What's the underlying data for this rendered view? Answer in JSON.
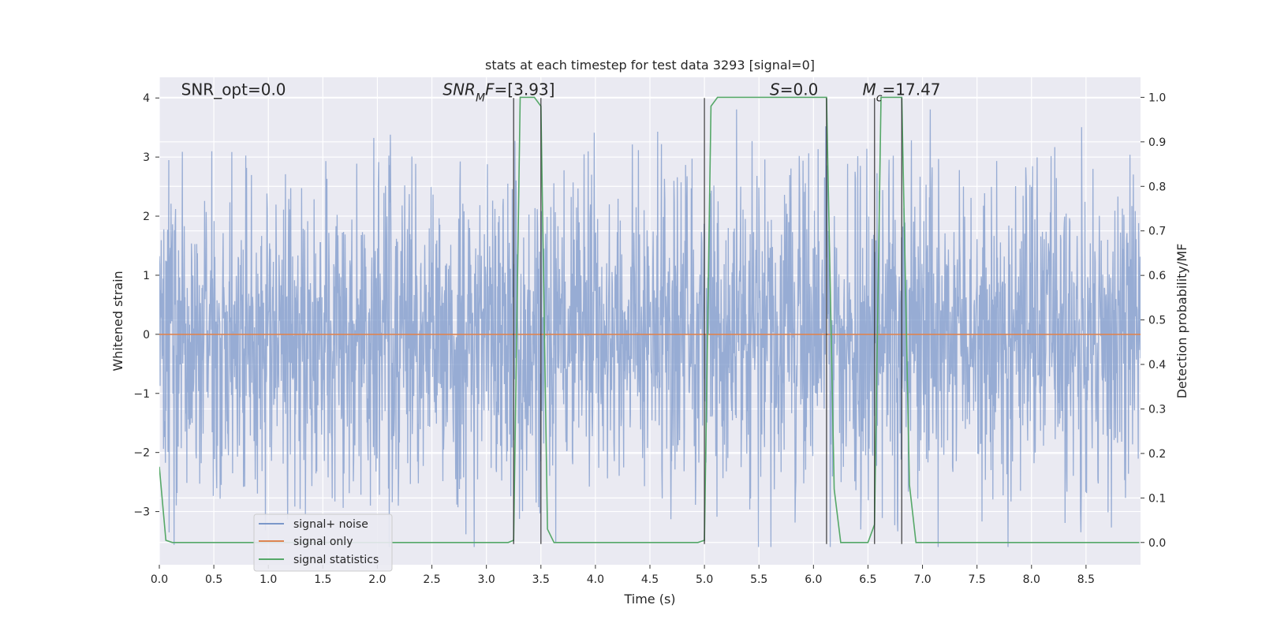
{
  "chart_data": {
    "type": "line",
    "title": "stats at each timestep for test data 3293 [signal=0]",
    "xlabel": "Time (s)",
    "ylabel": "Whitened strain",
    "y2label": "Detection probability/MF",
    "xlim": [
      0.0,
      9.0
    ],
    "ylim": [
      -3.9,
      4.35
    ],
    "y2lim": [
      -0.05,
      1.045
    ],
    "xticks": [
      0.0,
      0.5,
      1.0,
      1.5,
      2.0,
      2.5,
      3.0,
      3.5,
      4.0,
      4.5,
      5.0,
      5.5,
      6.0,
      6.5,
      7.0,
      7.5,
      8.0,
      8.5
    ],
    "xtick_labels": [
      "0.0",
      "0.5",
      "1.0",
      "1.5",
      "2.0",
      "2.5",
      "3.0",
      "3.5",
      "4.0",
      "4.5",
      "5.0",
      "5.5",
      "6.0",
      "6.5",
      "7.0",
      "7.5",
      "8.0",
      "8.5"
    ],
    "yticks": [
      4,
      3,
      2,
      1,
      0,
      -1,
      -2,
      -3
    ],
    "ytick_labels": [
      "4",
      "3",
      "2",
      "1",
      "0",
      "−1",
      "−2",
      "−3"
    ],
    "y2ticks": [
      1.0,
      0.9,
      0.8,
      0.7,
      0.6,
      0.5,
      0.4,
      0.3,
      0.2,
      0.1,
      0.0
    ],
    "y2tick_labels": [
      "1.0",
      "0.9",
      "0.8",
      "0.7",
      "0.6",
      "0.5",
      "0.4",
      "0.3",
      "0.2",
      "0.1",
      "0.0"
    ],
    "grid": true,
    "legend_position": "lower-left",
    "annotations": [
      {
        "x": 0.2,
        "y": 4.05,
        "segments": [
          {
            "t": "SNR_opt=0.0",
            "style": "normal"
          }
        ]
      },
      {
        "x": 2.6,
        "y": 4.05,
        "segments": [
          {
            "t": "SNR",
            "style": "italic"
          },
          {
            "t": "M",
            "style": "italic-sub"
          },
          {
            "t": "F",
            "style": "italic"
          },
          {
            "t": "=[3.93]",
            "style": "normal"
          }
        ]
      },
      {
        "x": 5.6,
        "y": 4.05,
        "segments": [
          {
            "t": "S",
            "style": "italic"
          },
          {
            "t": "=0.0",
            "style": "normal"
          }
        ]
      },
      {
        "x": 6.45,
        "y": 4.05,
        "segments": [
          {
            "t": "M",
            "style": "italic"
          },
          {
            "t": "c",
            "style": "italic-sub"
          },
          {
            "t": "=17.47",
            "style": "normal"
          }
        ]
      }
    ],
    "series": [
      {
        "name": "signal+ noise",
        "color": "#7b97c9",
        "kind": "noise",
        "band_sigma": 0.78,
        "peaks_min": 1.95,
        "peaks_max": 3.95,
        "troughs_min": -1.9,
        "troughs_max": -3.55
      },
      {
        "name": "signal only",
        "color": "#dd8452",
        "kind": "line",
        "x": [
          0.0,
          9.0
        ],
        "y": [
          0.0,
          0.0
        ]
      },
      {
        "name": "signal statistics",
        "color": "#55a868",
        "kind": "line",
        "axis": "right",
        "x": [
          0.0,
          0.06,
          0.12,
          3.2,
          3.25,
          3.31,
          3.44,
          3.5,
          3.56,
          3.62,
          4.94,
          5.0,
          5.06,
          5.12,
          6.12,
          6.19,
          6.25,
          6.5,
          6.56,
          6.62,
          6.81,
          6.88,
          6.94,
          8.99
        ],
        "y": [
          0.17,
          0.005,
          0.0,
          0.0,
          0.005,
          1.0,
          1.0,
          0.98,
          0.03,
          0.0,
          0.0,
          0.005,
          0.98,
          1.0,
          1.0,
          0.12,
          0.0,
          0.0,
          0.04,
          1.0,
          1.0,
          0.13,
          0.0,
          0.0
        ]
      }
    ],
    "vlines": [
      {
        "x": 3.25,
        "ymin": -3.55,
        "ymax": 4.0,
        "color": "#2b2b2b"
      },
      {
        "x": 3.5,
        "ymin": -3.55,
        "ymax": 4.0,
        "color": "#2b2b2b"
      },
      {
        "x": 5.0,
        "ymin": -3.55,
        "ymax": 4.0,
        "color": "#2b2b2b"
      },
      {
        "x": 6.12,
        "ymin": -3.55,
        "ymax": 4.0,
        "color": "#2b2b2b"
      },
      {
        "x": 6.56,
        "ymin": -3.55,
        "ymax": 4.0,
        "color": "#2b2b2b"
      },
      {
        "x": 6.81,
        "ymin": -3.55,
        "ymax": 4.0,
        "color": "#2b2b2b"
      }
    ],
    "colors": {
      "plot_background": "#eaeaf2",
      "grid": "#ffffff",
      "text": "#262626"
    }
  }
}
